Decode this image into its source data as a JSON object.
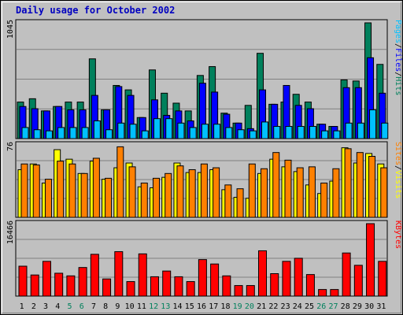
{
  "title": "Daily usage for October 2002",
  "colors": {
    "hits": "#00805c",
    "files": "#0000ff",
    "pages": "#00c0ff",
    "visits": "#ffff00",
    "sites": "#ff8000",
    "kbytes": "#ff0000",
    "weekend_label": "#00805c",
    "weekday_label": "#000000",
    "panel_bg": "#c0c0c0",
    "grid": "#808080"
  },
  "chart_data": [
    {
      "type": "bar",
      "panel": "top",
      "ymax_label": "1045",
      "ylim": [
        0,
        1045
      ],
      "grid": true,
      "legend_right": [
        "Pages",
        "/",
        "Files",
        "/",
        "Hits"
      ],
      "categories": [
        "1",
        "2",
        "3",
        "4",
        "5",
        "6",
        "7",
        "8",
        "9",
        "10",
        "11",
        "12",
        "13",
        "14",
        "15",
        "16",
        "17",
        "18",
        "19",
        "20",
        "21",
        "22",
        "23",
        "24",
        "25",
        "26",
        "27",
        "28",
        "29",
        "30",
        "31"
      ],
      "weekend_days": [
        "5",
        "6",
        "12",
        "13",
        "19",
        "20",
        "26",
        "27"
      ],
      "series": [
        {
          "name": "Hits",
          "values": [
            330,
            360,
            250,
            290,
            330,
            330,
            720,
            260,
            480,
            440,
            190,
            620,
            410,
            320,
            250,
            570,
            650,
            230,
            140,
            300,
            770,
            310,
            330,
            400,
            330,
            130,
            110,
            530,
            520,
            1045,
            670
          ]
        },
        {
          "name": "Files",
          "values": [
            290,
            270,
            250,
            290,
            260,
            260,
            390,
            260,
            470,
            390,
            190,
            350,
            210,
            250,
            160,
            500,
            420,
            220,
            140,
            90,
            440,
            310,
            480,
            300,
            270,
            130,
            110,
            460,
            460,
            730,
            410
          ]
        },
        {
          "name": "Pages",
          "values": [
            100,
            80,
            70,
            100,
            100,
            100,
            160,
            80,
            140,
            130,
            70,
            180,
            180,
            140,
            100,
            130,
            130,
            100,
            80,
            70,
            150,
            110,
            110,
            110,
            110,
            70,
            70,
            140,
            140,
            260,
            140
          ]
        }
      ]
    },
    {
      "type": "bar",
      "panel": "middle",
      "ymax_label": "76",
      "ylim": [
        0,
        76
      ],
      "grid": true,
      "legend_right": [
        "Sites",
        "/",
        "Visits"
      ],
      "categories": [
        "1",
        "2",
        "3",
        "4",
        "5",
        "6",
        "7",
        "8",
        "9",
        "10",
        "11",
        "12",
        "13",
        "14",
        "15",
        "16",
        "17",
        "18",
        "19",
        "20",
        "21",
        "22",
        "23",
        "24",
        "25",
        "26",
        "27",
        "28",
        "29",
        "30",
        "31"
      ],
      "series": [
        {
          "name": "Visits",
          "values": [
            50,
            56,
            36,
            71,
            61,
            46,
            59,
            40,
            52,
            57,
            32,
            31,
            42,
            57,
            47,
            47,
            50,
            29,
            21,
            20,
            46,
            61,
            53,
            48,
            34,
            25,
            38,
            73,
            57,
            67,
            56
          ]
        },
        {
          "name": "Sites",
          "values": [
            56,
            55,
            40,
            59,
            56,
            46,
            62,
            41,
            74,
            53,
            36,
            41,
            46,
            54,
            50,
            56,
            52,
            34,
            30,
            56,
            51,
            68,
            60,
            52,
            53,
            36,
            51,
            72,
            68,
            64,
            52
          ]
        }
      ]
    },
    {
      "type": "bar",
      "panel": "bottom",
      "ymax_label": "16466",
      "ylim": [
        0,
        16466
      ],
      "grid": true,
      "legend_right": [
        "KBytes"
      ],
      "categories": [
        "1",
        "2",
        "3",
        "4",
        "5",
        "6",
        "7",
        "8",
        "9",
        "10",
        "11",
        "12",
        "13",
        "14",
        "15",
        "16",
        "17",
        "18",
        "19",
        "20",
        "21",
        "22",
        "23",
        "24",
        "25",
        "26",
        "27",
        "28",
        "29",
        "30",
        "31"
      ],
      "series": [
        {
          "name": "KBytes",
          "values": [
            6800,
            4800,
            7900,
            5200,
            4600,
            6500,
            9500,
            3900,
            10100,
            3300,
            9600,
            4400,
            5700,
            4400,
            3300,
            8300,
            7300,
            4600,
            2400,
            2400,
            10300,
            5100,
            7900,
            8600,
            4900,
            1500,
            1500,
            9800,
            7000,
            16466,
            7900
          ]
        }
      ]
    }
  ]
}
